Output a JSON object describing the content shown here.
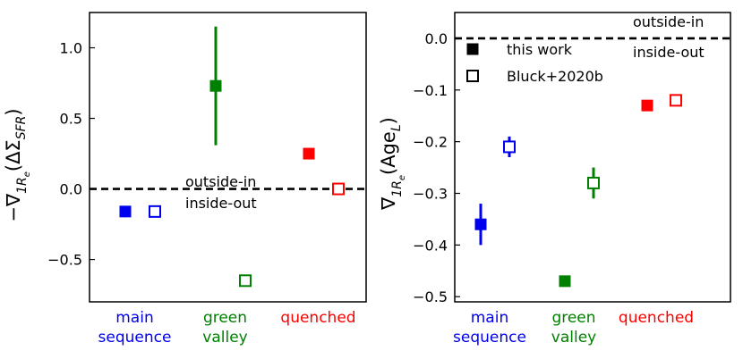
{
  "chart_data": [
    {
      "type": "scatter",
      "ylabel": "−∇1Re(ΔΣSFR)",
      "ylabel_parts": {
        "pre": "−∇",
        "sub1": "1R",
        "sub2": "e",
        "mid": "(ΔΣ",
        "sub3": "SFR",
        "post": ")"
      },
      "ylim": [
        -0.8,
        1.25
      ],
      "yticks": [
        -0.5,
        0.0,
        0.5,
        1.0
      ],
      "ytick_labels": [
        "−0.5",
        "0.0",
        "0.5",
        "1.0"
      ],
      "reference_line": 0.0,
      "annotations": [
        "outside-in",
        "inside-out"
      ],
      "categories": [
        "main sequence",
        "green valley",
        "quenched"
      ],
      "category_lines": [
        [
          "main",
          "sequence"
        ],
        [
          "green",
          "valley"
        ],
        [
          "quenched"
        ]
      ],
      "category_colors": [
        "#0000ee",
        "#008000",
        "#ff0000"
      ],
      "series": [
        {
          "name": "this work",
          "marker": "filled-square",
          "points": [
            {
              "category": "main sequence",
              "y": -0.16,
              "err_low": 0.04,
              "err_high": 0.03
            },
            {
              "category": "green valley",
              "y": 0.73,
              "err_low": 0.42,
              "err_high": 0.42
            },
            {
              "category": "quenched",
              "y": 0.25,
              "err_low": 0.0,
              "err_high": 0.0
            }
          ]
        },
        {
          "name": "Bluck+2020b",
          "marker": "open-square",
          "points": [
            {
              "category": "main sequence",
              "y": -0.16,
              "err_low": 0.0,
              "err_high": 0.0
            },
            {
              "category": "green valley",
              "y": -0.65,
              "err_low": 0.04,
              "err_high": 0.04
            },
            {
              "category": "quenched",
              "y": 0.0,
              "err_low": 0.0,
              "err_high": 0.0
            }
          ]
        }
      ]
    },
    {
      "type": "scatter",
      "ylabel": "∇1Re(AgeL)",
      "ylabel_parts": {
        "pre": "∇",
        "sub1": "1R",
        "sub2": "e",
        "mid": "(Age",
        "sub3": "L",
        "post": ")"
      },
      "ylim": [
        -0.51,
        0.05
      ],
      "yticks": [
        -0.5,
        -0.4,
        -0.3,
        -0.2,
        -0.1,
        0.0
      ],
      "ytick_labels": [
        "−0.5",
        "−0.4",
        "−0.3",
        "−0.2",
        "−0.1",
        "0.0"
      ],
      "reference_line": 0.0,
      "annotations": [
        "outside-in",
        "inside-out"
      ],
      "legend_position": "upper-left",
      "legend": [
        "this work",
        "Bluck+2020b"
      ],
      "categories": [
        "main sequence",
        "green valley",
        "quenched"
      ],
      "category_lines": [
        [
          "main",
          "sequence"
        ],
        [
          "green",
          "valley"
        ],
        [
          "quenched"
        ]
      ],
      "category_colors": [
        "#0000ee",
        "#008000",
        "#ff0000"
      ],
      "series": [
        {
          "name": "this work",
          "marker": "filled-square",
          "points": [
            {
              "category": "main sequence",
              "y": -0.36,
              "err_low": 0.04,
              "err_high": 0.04
            },
            {
              "category": "green valley",
              "y": -0.47,
              "err_low": 0.0,
              "err_high": 0.0
            },
            {
              "category": "quenched",
              "y": -0.13,
              "err_low": 0.0,
              "err_high": 0.0
            }
          ]
        },
        {
          "name": "Bluck+2020b",
          "marker": "open-square",
          "points": [
            {
              "category": "main sequence",
              "y": -0.21,
              "err_low": 0.02,
              "err_high": 0.02
            },
            {
              "category": "green valley",
              "y": -0.28,
              "err_low": 0.03,
              "err_high": 0.03
            },
            {
              "category": "quenched",
              "y": -0.12,
              "err_low": 0.0,
              "err_high": 0.0
            }
          ]
        }
      ]
    }
  ]
}
